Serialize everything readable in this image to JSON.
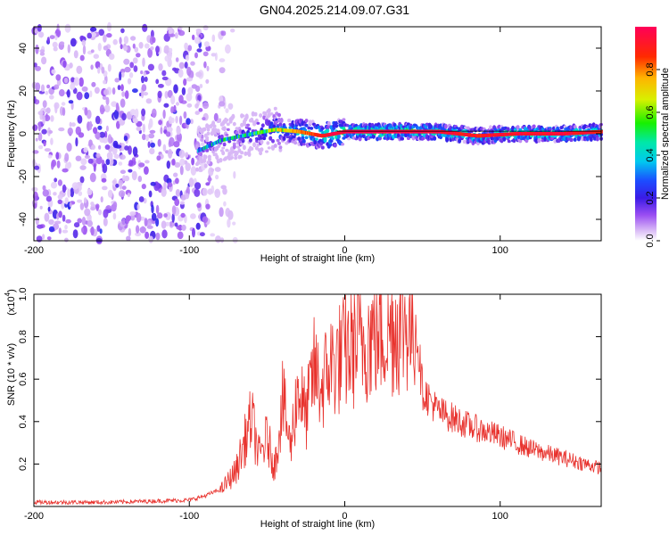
{
  "title": "GN04.2025.214.09.07.G31",
  "chart_data": [
    {
      "type": "heatmap",
      "name": "spectrogram",
      "xlabel": "Height of straight line (km)",
      "ylabel": "Frequency (Hz)",
      "xlim": [
        -200,
        165
      ],
      "ylim": [
        -50,
        50
      ],
      "xticks": [
        -200,
        -100,
        0,
        100
      ],
      "yticks": [
        -40,
        -20,
        0,
        20,
        40
      ],
      "colorbar": {
        "label": "Normalized spectral amplitude",
        "range": [
          0,
          1
        ],
        "ticks": [
          0.0,
          0.2,
          0.4,
          0.6,
          0.8
        ],
        "tick_labels": [
          "0.0",
          "0.2",
          "0.4",
          "0.6",
          "0.8"
        ]
      },
      "ridge": {
        "description_points_x": [
          -95,
          -80,
          -60,
          -45,
          -30,
          -15,
          0,
          30,
          60,
          85,
          110,
          140,
          165
        ],
        "frequency": [
          -8,
          -3,
          0,
          2,
          1,
          -1,
          1,
          1,
          1,
          -1,
          0,
          0,
          1
        ],
        "amplitude": [
          0.35,
          0.4,
          0.45,
          0.6,
          0.8,
          0.9,
          1.0,
          1.0,
          0.95,
          0.9,
          0.95,
          0.95,
          0.9
        ]
      },
      "noise_region_x": [
        -200,
        -95
      ],
      "grid": false
    },
    {
      "type": "line",
      "name": "snr",
      "xlabel": "Height of straight line (km)",
      "ylabel": "SNR (10 * v/v)",
      "multiplier_label": "(x10",
      "multiplier_exponent": "4",
      "xlim": [
        -200,
        165
      ],
      "ylim": [
        0,
        1.0
      ],
      "xticks": [
        -200,
        -100,
        0,
        100
      ],
      "yticks": [
        0.2,
        0.4,
        0.6,
        0.8,
        1.0
      ],
      "ytick_labels": [
        "0.2",
        "0.4",
        "0.6",
        "0.8",
        "1.0"
      ],
      "color": "#e8322d",
      "series": [
        {
          "x": [
            -200,
            -150,
            -100,
            -90,
            -80,
            -70,
            -60,
            -55,
            -50,
            -45,
            -40,
            -35,
            -30,
            -25,
            -20,
            -15,
            -10,
            -5,
            0,
            10,
            20,
            30,
            40,
            45,
            50,
            60,
            80,
            100,
            120,
            140,
            165
          ],
          "values": [
            0.02,
            0.02,
            0.03,
            0.05,
            0.08,
            0.18,
            0.45,
            0.25,
            0.35,
            0.2,
            0.55,
            0.3,
            0.62,
            0.45,
            0.7,
            0.6,
            0.72,
            0.74,
            0.78,
            0.84,
            0.88,
            0.91,
            0.94,
            0.92,
            0.55,
            0.45,
            0.38,
            0.33,
            0.27,
            0.23,
            0.18
          ]
        }
      ],
      "grid": false
    }
  ]
}
